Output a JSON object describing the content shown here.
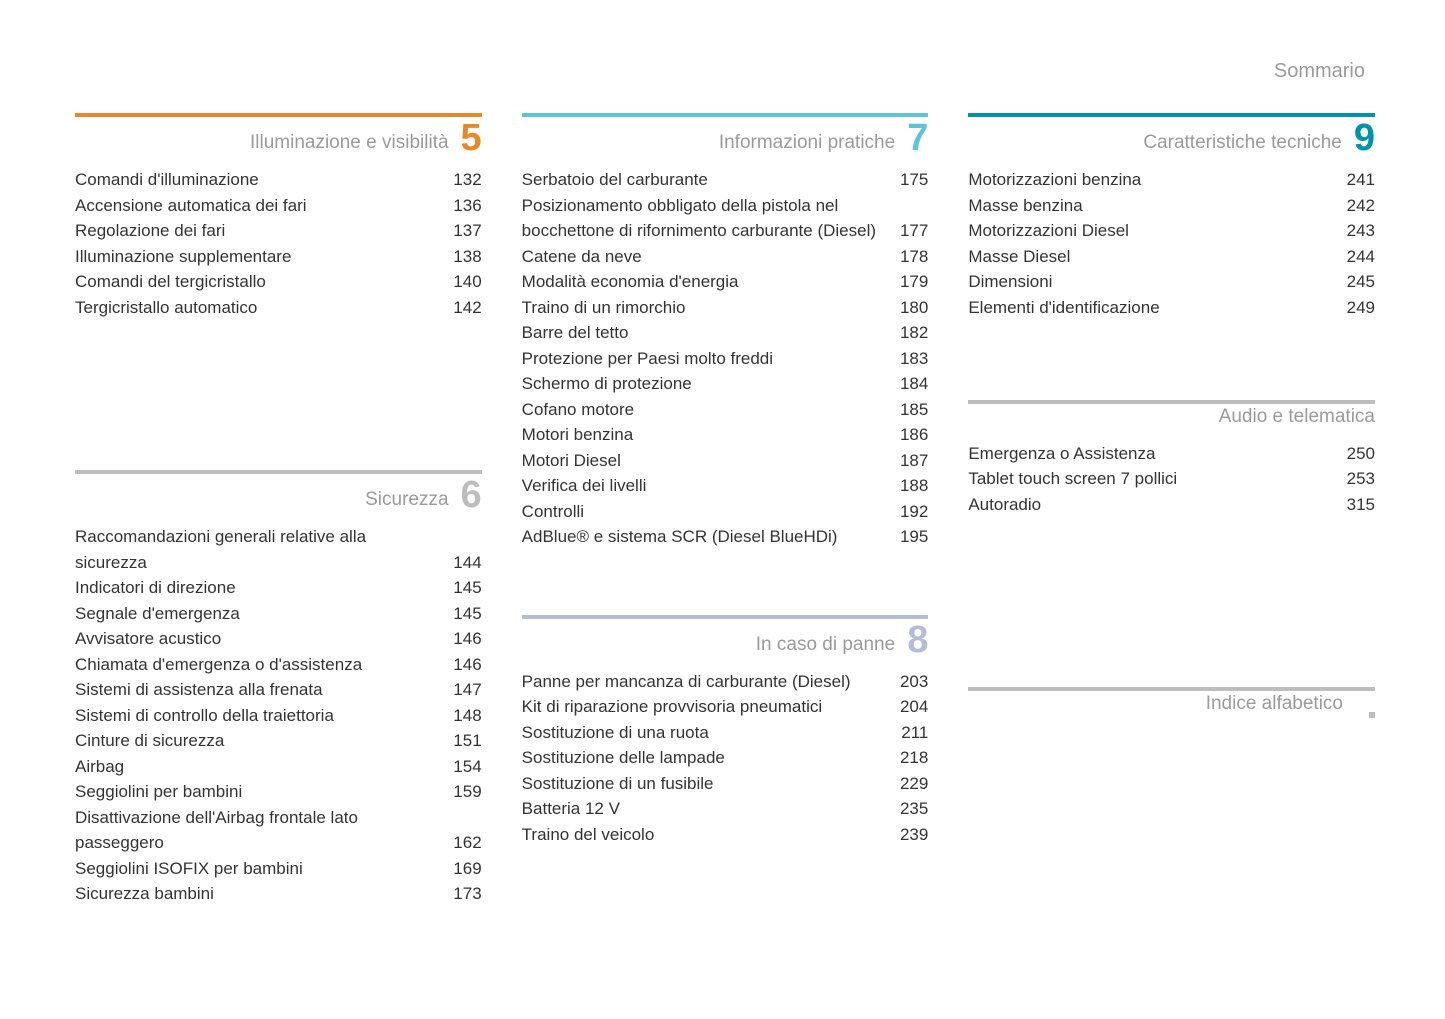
{
  "header": "Sommario",
  "colors": {
    "text": "#333333",
    "muted": "#9a9a9a"
  },
  "columns": [
    {
      "sections": [
        {
          "id": "sec5",
          "title": "Illuminazione e visibilità",
          "number": "5",
          "bar_color": "#e8882e",
          "num_color": "#e8882e",
          "entries": [
            {
              "label": "Comandi d'illuminazione",
              "page": "132"
            },
            {
              "label": "Accensione automatica dei fari",
              "page": "136"
            },
            {
              "label": "Regolazione dei fari",
              "page": "137"
            },
            {
              "label": "Illuminazione supplementare",
              "page": "138"
            },
            {
              "label": "Comandi del tergicristallo",
              "page": "140"
            },
            {
              "label": "Tergicristallo automatico",
              "page": "142"
            }
          ]
        },
        {
          "id": "sec6",
          "title": "Sicurezza",
          "number": "6",
          "bar_color": "#bdbdbd",
          "num_color": "#bdbdbd",
          "gap_before": 150,
          "entries": [
            {
              "label": "Raccomandazioni generali relative alla sicurezza",
              "page": "144"
            },
            {
              "label": "Indicatori di direzione",
              "page": "145"
            },
            {
              "label": "Segnale d'emergenza",
              "page": "145"
            },
            {
              "label": "Avvisatore acustico",
              "page": "146"
            },
            {
              "label": "Chiamata d'emergenza o d'assistenza",
              "page": "146"
            },
            {
              "label": "Sistemi di assistenza alla frenata",
              "page": "147"
            },
            {
              "label": "Sistemi di controllo della traiettoria",
              "page": "148"
            },
            {
              "label": "Cinture di sicurezza",
              "page": "151"
            },
            {
              "label": "Airbag",
              "page": "154"
            },
            {
              "label": "Seggiolini per bambini",
              "page": "159"
            },
            {
              "label": "Disattivazione dell'Airbag frontale lato passeggero",
              "page": "162"
            },
            {
              "label": "Seggiolini ISOFIX per bambini",
              "page": "169"
            },
            {
              "label": "Sicurezza bambini",
              "page": "173"
            }
          ]
        }
      ]
    },
    {
      "sections": [
        {
          "id": "sec7",
          "title": "Informazioni pratiche",
          "number": "7",
          "bar_color": "#5fc3d6",
          "num_color": "#5fc3d6",
          "entries": [
            {
              "label": "Serbatoio del carburante",
              "page": "175"
            },
            {
              "label": "Posizionamento obbligato della pistola nel bocchettone di rifornimento carburante (Diesel)",
              "page": "177"
            },
            {
              "label": "Catene da neve",
              "page": "178"
            },
            {
              "label": "Modalità economia d'energia",
              "page": "179"
            },
            {
              "label": "Traino di un rimorchio",
              "page": "180"
            },
            {
              "label": "Barre del tetto",
              "page": "182"
            },
            {
              "label": "Protezione per Paesi molto freddi",
              "page": "183"
            },
            {
              "label": "Schermo di protezione",
              "page": "184"
            },
            {
              "label": "Cofano motore",
              "page": "185"
            },
            {
              "label": "Motori benzina",
              "page": "186"
            },
            {
              "label": "Motori Diesel",
              "page": "187"
            },
            {
              "label": "Verifica dei livelli",
              "page": "188"
            },
            {
              "label": "Controlli",
              "page": "192"
            },
            {
              "label": "AdBlue® e sistema SCR (Diesel BlueHDi)",
              "page": "195"
            }
          ]
        },
        {
          "id": "sec8",
          "title": "In caso di panne",
          "number": "8",
          "bar_color": "#b5bcd6",
          "num_color": "#b5bcd6",
          "gap_before": 65,
          "entries": [
            {
              "label": "Panne per mancanza di carburante (Diesel)",
              "page": "203"
            },
            {
              "label": "Kit di riparazione provvisoria pneumatici",
              "page": "204"
            },
            {
              "label": "Sostituzione di una ruota",
              "page": "211"
            },
            {
              "label": "Sostituzione delle lampade",
              "page": "218"
            },
            {
              "label": "Sostituzione di un fusibile",
              "page": "229"
            },
            {
              "label": "Batteria 12 V",
              "page": "235"
            },
            {
              "label": "Traino del veicolo",
              "page": "239"
            }
          ]
        }
      ]
    },
    {
      "sections": [
        {
          "id": "sec9",
          "title": "Caratteristiche tecniche",
          "number": "9",
          "bar_color": "#0092a8",
          "num_color": "#0092a8",
          "entries": [
            {
              "label": "Motorizzazioni benzina",
              "page": "241"
            },
            {
              "label": "Masse benzina",
              "page": "242"
            },
            {
              "label": "Motorizzazioni Diesel",
              "page": "243"
            },
            {
              "label": "Masse Diesel",
              "page": "244"
            },
            {
              "label": "Dimensioni",
              "page": "245"
            },
            {
              "label": "Elementi d'identificazione",
              "page": "249"
            }
          ]
        },
        {
          "id": "sec-audio",
          "title": "Audio e telematica",
          "number": "",
          "bar_color": "#bdbdbd",
          "num_color": "#bdbdbd",
          "no_number": true,
          "gap_before": 80,
          "entries": [
            {
              "label": "Emergenza o Assistenza",
              "page": "250"
            },
            {
              "label": "Tablet touch screen 7 pollici",
              "page": "253"
            },
            {
              "label": "Autoradio",
              "page": "315"
            }
          ]
        },
        {
          "id": "sec-index",
          "title": "Indice alfabetico",
          "number": "",
          "bar_color": "#bdbdbd",
          "num_color": "#bdbdbd",
          "no_number": true,
          "index_marker": true,
          "gap_before": 170,
          "entries": []
        }
      ]
    }
  ]
}
